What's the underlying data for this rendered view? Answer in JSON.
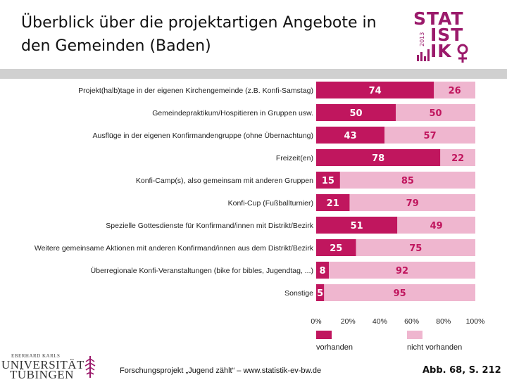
{
  "header": {
    "title": "Überblick über die projektartigen Angebote in den Gemeinden (Baden)"
  },
  "logo": {
    "word_line1": "STAT",
    "word_line2": "IST",
    "word_line3": "IK",
    "year": "2013",
    "color": "#9b1a6b"
  },
  "footer": {
    "university_top": "EBERHARD KARLS",
    "university_mid": "UNIVERSITÄT",
    "university_bot": "TÜBINGEN",
    "project_text": "Forschungsprojekt „Jugend zählt“ – www.statistik-ev-bw.de",
    "figure_ref": "Abb. 68, S. 212"
  },
  "chart_data": {
    "type": "bar",
    "orientation": "horizontal",
    "stacked": true,
    "categories": [
      "Projekt(halb)tage in der eigenen Kirchengemeinde (z.B. Konfi-Samstag)",
      "Gemeindepraktikum/Hospitieren in Gruppen usw.",
      "Ausflüge in der eigenen Konfirmandengruppe (ohne Übernachtung)",
      "Freizeit(en)",
      "Konfi-Camp(s), also gemeinsam mit anderen Gruppen",
      "Konfi-Cup (Fußballturnier)",
      "Spezielle Gottesdienste für Konfirmand/innen mit Distrikt/Bezirk",
      "Weitere gemeinsame Aktionen mit anderen Konfirmand/innen aus dem Distrikt/Bezirk",
      "Überregionale Konfi-Veranstaltungen (bike for bibles, Jugendtag, ...)",
      "Sonstige"
    ],
    "series": [
      {
        "name": "vorhanden",
        "color": "#c0165e",
        "values": [
          74,
          50,
          43,
          78,
          15,
          21,
          51,
          25,
          8,
          5
        ]
      },
      {
        "name": "nicht vorhanden",
        "color": "#efb6cf",
        "values": [
          26,
          50,
          57,
          22,
          85,
          79,
          49,
          75,
          92,
          95
        ]
      }
    ],
    "xlim": [
      0,
      100
    ],
    "xticks": [
      "0%",
      "20%",
      "40%",
      "60%",
      "80%",
      "100%"
    ],
    "legend_position": "bottom"
  }
}
